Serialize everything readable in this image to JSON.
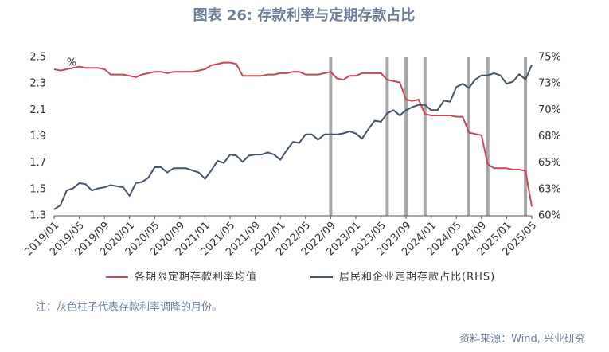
{
  "chart_data": {
    "type": "line",
    "title": "图表 26: 存款利率与定期存款占比",
    "y_unit": "%",
    "categories": [
      "2019/01",
      null,
      null,
      null,
      "2019/05",
      null,
      null,
      null,
      "2019/09",
      null,
      null,
      null,
      "2020/01",
      null,
      null,
      null,
      "2020/05",
      null,
      null,
      null,
      "2020/09",
      null,
      null,
      null,
      "2021/01",
      null,
      null,
      null,
      "2021/05",
      null,
      null,
      null,
      "2021/09",
      null,
      null,
      null,
      "2022/01",
      null,
      null,
      null,
      "2022/05",
      null,
      null,
      null,
      "2022/09",
      null,
      null,
      null,
      "2023/01",
      null,
      null,
      null,
      "2023/05",
      null,
      null,
      null,
      "2023/09",
      null,
      null,
      null,
      "2024/01",
      null,
      null,
      null,
      "2024/05",
      null,
      null,
      null,
      "2024/09",
      null,
      null,
      null,
      "2025/01",
      null,
      null,
      null,
      "2025/05"
    ],
    "series": [
      {
        "name": "各期限定期存款利率均值",
        "color": "#c8475a",
        "values": [
          2.41,
          2.4,
          2.41,
          2.42,
          2.43,
          2.42,
          2.42,
          2.42,
          2.41,
          2.37,
          2.37,
          2.37,
          2.36,
          2.35,
          2.37,
          2.38,
          2.39,
          2.39,
          2.38,
          2.39,
          2.39,
          2.39,
          2.39,
          2.4,
          2.41,
          2.44,
          2.45,
          2.46,
          2.46,
          2.45,
          2.36,
          2.36,
          2.36,
          2.36,
          2.37,
          2.37,
          2.38,
          2.38,
          2.39,
          2.39,
          2.37,
          2.37,
          2.37,
          2.38,
          2.39,
          2.34,
          2.33,
          2.36,
          2.36,
          2.38,
          2.38,
          2.38,
          2.38,
          2.33,
          2.32,
          2.31,
          2.18,
          2.17,
          2.18,
          2.07,
          2.06,
          2.06,
          2.06,
          2.06,
          2.05,
          2.05,
          1.93,
          1.92,
          1.91,
          1.69,
          1.66,
          1.66,
          1.66,
          1.65,
          1.65,
          1.64,
          1.37
        ]
      },
      {
        "name": "居民和企业定期存款占比(RHS)",
        "color": "#44546a",
        "axis": "y2",
        "values": [
          60.6,
          61.0,
          62.4,
          62.6,
          63.1,
          63.0,
          62.4,
          62.6,
          62.7,
          62.9,
          62.8,
          62.7,
          61.9,
          63.1,
          63.2,
          63.6,
          64.6,
          64.6,
          64.1,
          64.5,
          64.5,
          64.5,
          64.3,
          64.1,
          63.5,
          64.3,
          65.2,
          65.0,
          65.8,
          65.7,
          65.1,
          65.7,
          65.8,
          65.8,
          66.0,
          65.8,
          65.3,
          66.2,
          67.0,
          66.9,
          67.7,
          67.7,
          67.2,
          67.7,
          67.7,
          67.7,
          67.8,
          68.0,
          67.8,
          67.3,
          68.2,
          69.0,
          68.9,
          69.7,
          70.0,
          69.5,
          70.0,
          70.3,
          70.5,
          70.5,
          70.0,
          70.0,
          70.9,
          70.8,
          72.2,
          72.5,
          72.1,
          72.9,
          73.3,
          73.3,
          73.5,
          73.3,
          72.5,
          72.7,
          73.4,
          72.9,
          74.3
        ]
      }
    ],
    "highlight_months": [
      44,
      53,
      56,
      59,
      66,
      69,
      75
    ],
    "highlight_color": "#a6a6a6",
    "ylim": [
      1.3,
      2.5
    ],
    "yticks": [
      1.3,
      1.5,
      1.7,
      1.9,
      2.1,
      2.3,
      2.5
    ],
    "y2lim": [
      60,
      75
    ],
    "y2ticks": [
      {
        "value": 60,
        "label": "60%"
      },
      {
        "value": 62.5,
        "label": "63%"
      },
      {
        "value": 65,
        "label": "65%"
      },
      {
        "value": 67.5,
        "label": "68%"
      },
      {
        "value": 70,
        "label": "70%"
      },
      {
        "value": 72.5,
        "label": "73%"
      },
      {
        "value": 75,
        "label": "75%"
      }
    ],
    "grid": false,
    "legend": "bottom",
    "note": "注：灰色柱子代表存款利率调降的月份。",
    "source": "资料来源：Wind, 兴业研究"
  }
}
